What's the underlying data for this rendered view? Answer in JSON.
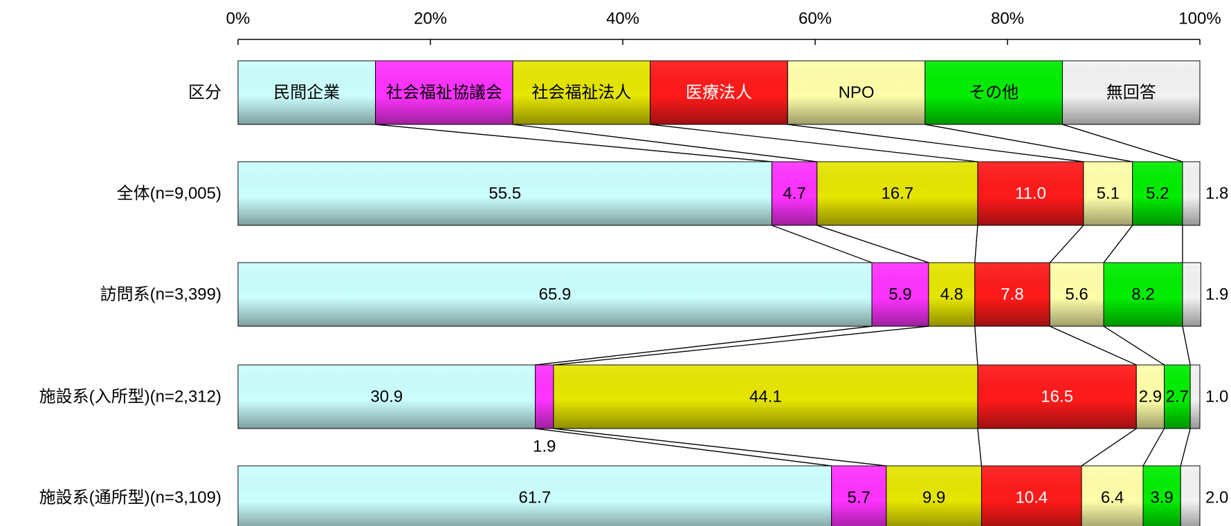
{
  "chart_data": {
    "type": "bar",
    "stacked": "percent",
    "orientation": "horizontal",
    "xlim": [
      0,
      100
    ],
    "x_ticks": [
      "0%",
      "20%",
      "40%",
      "60%",
      "80%",
      "100%"
    ],
    "legend_row_label": "区分",
    "series": [
      {
        "name": "民間企業",
        "color": "#CCFFFF",
        "text_color": "#000000"
      },
      {
        "name": "社会福祉協議会",
        "color": "#FF33FF",
        "text_color": "#000000"
      },
      {
        "name": "社会福祉法人",
        "color": "#E6E600",
        "text_color": "#000000"
      },
      {
        "name": "医療法人",
        "color": "#FF1A1A",
        "text_color": "#FFFFFF"
      },
      {
        "name": "NPO",
        "color": "#FFFFAA",
        "text_color": "#000000"
      },
      {
        "name": "その他",
        "color": "#00EE00",
        "text_color": "#000000"
      },
      {
        "name": "無回答",
        "color": "#F2F2F2",
        "text_color": "#000000"
      }
    ],
    "categories": [
      {
        "label": "全体(n=9,005)",
        "values": [
          55.5,
          4.7,
          16.7,
          11.0,
          5.1,
          5.2,
          1.8
        ],
        "value_labels": [
          "55.5",
          "4.7",
          "16.7",
          "11.0",
          "5.1",
          "5.2",
          "1.8"
        ]
      },
      {
        "label": "訪問系(n=3,399)",
        "values": [
          65.9,
          5.9,
          4.8,
          7.8,
          5.6,
          8.2,
          1.9
        ],
        "value_labels": [
          "65.9",
          "5.9",
          "4.8",
          "7.8",
          "5.6",
          "8.2",
          "1.9"
        ]
      },
      {
        "label": "施設系(入所型)(n=2,312)",
        "values": [
          30.9,
          1.9,
          44.1,
          16.5,
          2.9,
          2.7,
          1.0
        ],
        "value_labels": [
          "30.9",
          "1.9",
          "44.1",
          "16.5",
          "2.9",
          "2.7",
          "1.0"
        ]
      },
      {
        "label": "施設系(通所型)(n=3,109)",
        "values": [
          61.7,
          5.7,
          9.9,
          10.4,
          6.4,
          3.9,
          2.0
        ],
        "value_labels": [
          "61.7",
          "5.7",
          "9.9",
          "10.4",
          "6.4",
          "3.9",
          "2.0"
        ]
      }
    ]
  }
}
